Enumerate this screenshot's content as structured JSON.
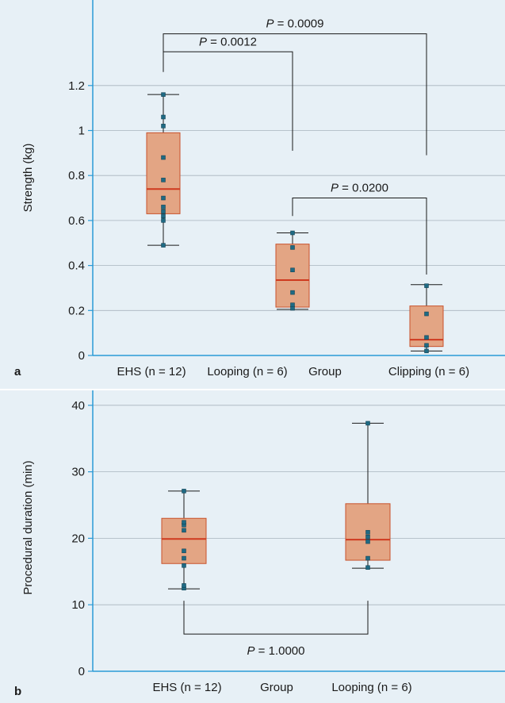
{
  "colors": {
    "background": "#e7f0f6",
    "axis": "#2a9ad6",
    "grid": "#a8b4bd",
    "box_fill": "#e3a584",
    "box_edge": "#c8512b",
    "median": "#cf3a1f",
    "whisker": "#1a1a1a",
    "point": "#1f6a84"
  },
  "chart_data": [
    {
      "type": "box",
      "panel": "a",
      "ylabel": "Strength (kg)",
      "xlabel": "Group",
      "ylim": [
        0,
        1.4
      ],
      "ytick_values": [
        0,
        0.2,
        0.4,
        0.6,
        0.8,
        1,
        1.2
      ],
      "ytick_labels": [
        "0",
        "0.2",
        "0.4",
        "0.6",
        "0.8",
        "1",
        "1.2"
      ],
      "grid": true,
      "categories": [
        "EHS (n = 12)",
        "Looping (n = 6)",
        "Clipping (n = 6)"
      ],
      "boxes": [
        {
          "name": "EHS (n = 12)",
          "min": 0.49,
          "q1": 0.63,
          "median": 0.74,
          "q3": 0.99,
          "max": 1.16,
          "points": [
            0.49,
            0.6,
            0.62,
            0.64,
            0.66,
            0.7,
            0.78,
            0.88,
            1.02,
            1.06,
            1.16
          ]
        },
        {
          "name": "Looping (n = 6)",
          "min": 0.205,
          "q1": 0.215,
          "median": 0.335,
          "q3": 0.495,
          "max": 0.545,
          "points": [
            0.21,
            0.225,
            0.28,
            0.38,
            0.48,
            0.545
          ]
        },
        {
          "name": "Clipping (n = 6)",
          "min": 0.02,
          "q1": 0.04,
          "median": 0.07,
          "q3": 0.22,
          "max": 0.315,
          "points": [
            0.02,
            0.045,
            0.08,
            0.185,
            0.31
          ]
        }
      ],
      "annotations": [
        {
          "prefix": "P",
          "text": " = 0.0009",
          "from": 0,
          "to": 2,
          "y_from": 1.35,
          "y_to": 0.89,
          "y_top": 1.43
        },
        {
          "prefix": "P",
          "text": " = 0.0012",
          "from": 0,
          "to": 1,
          "y_from": 1.26,
          "y_to": 0.91,
          "y_top": 1.35
        },
        {
          "prefix": "P",
          "text": " = 0.0200",
          "from": 1,
          "to": 2,
          "y_from": 0.62,
          "y_to": 0.36,
          "y_top": 0.7
        }
      ]
    },
    {
      "type": "box",
      "panel": "b",
      "ylabel": "Procedural duration (min)",
      "xlabel": "Group",
      "ylim": [
        0,
        42
      ],
      "ytick_values": [
        0,
        10,
        20,
        30,
        40
      ],
      "ytick_labels": [
        "0",
        "10",
        "20",
        "30",
        "40"
      ],
      "grid": true,
      "categories": [
        "EHS (n = 12)",
        "Looping (n = 6)"
      ],
      "boxes": [
        {
          "name": "EHS (n = 12)",
          "min": 12.4,
          "q1": 16.2,
          "median": 19.9,
          "q3": 23,
          "max": 27.1,
          "points": [
            12.5,
            12.9,
            15.9,
            17,
            18.1,
            21.2,
            22,
            22.4,
            27.1
          ]
        },
        {
          "name": "Looping (n = 6)",
          "min": 15.5,
          "q1": 16.7,
          "median": 19.8,
          "q3": 25.2,
          "max": 37.3,
          "points": [
            15.6,
            17,
            19.5,
            20.2,
            20.9,
            37.3
          ]
        }
      ],
      "annotations": [
        {
          "prefix": "P",
          "text": " = 1.0000",
          "from": 0,
          "to": 1,
          "y_from": 10.6,
          "y_to": 10.6,
          "y_top": 5.6,
          "below": true
        }
      ]
    }
  ]
}
